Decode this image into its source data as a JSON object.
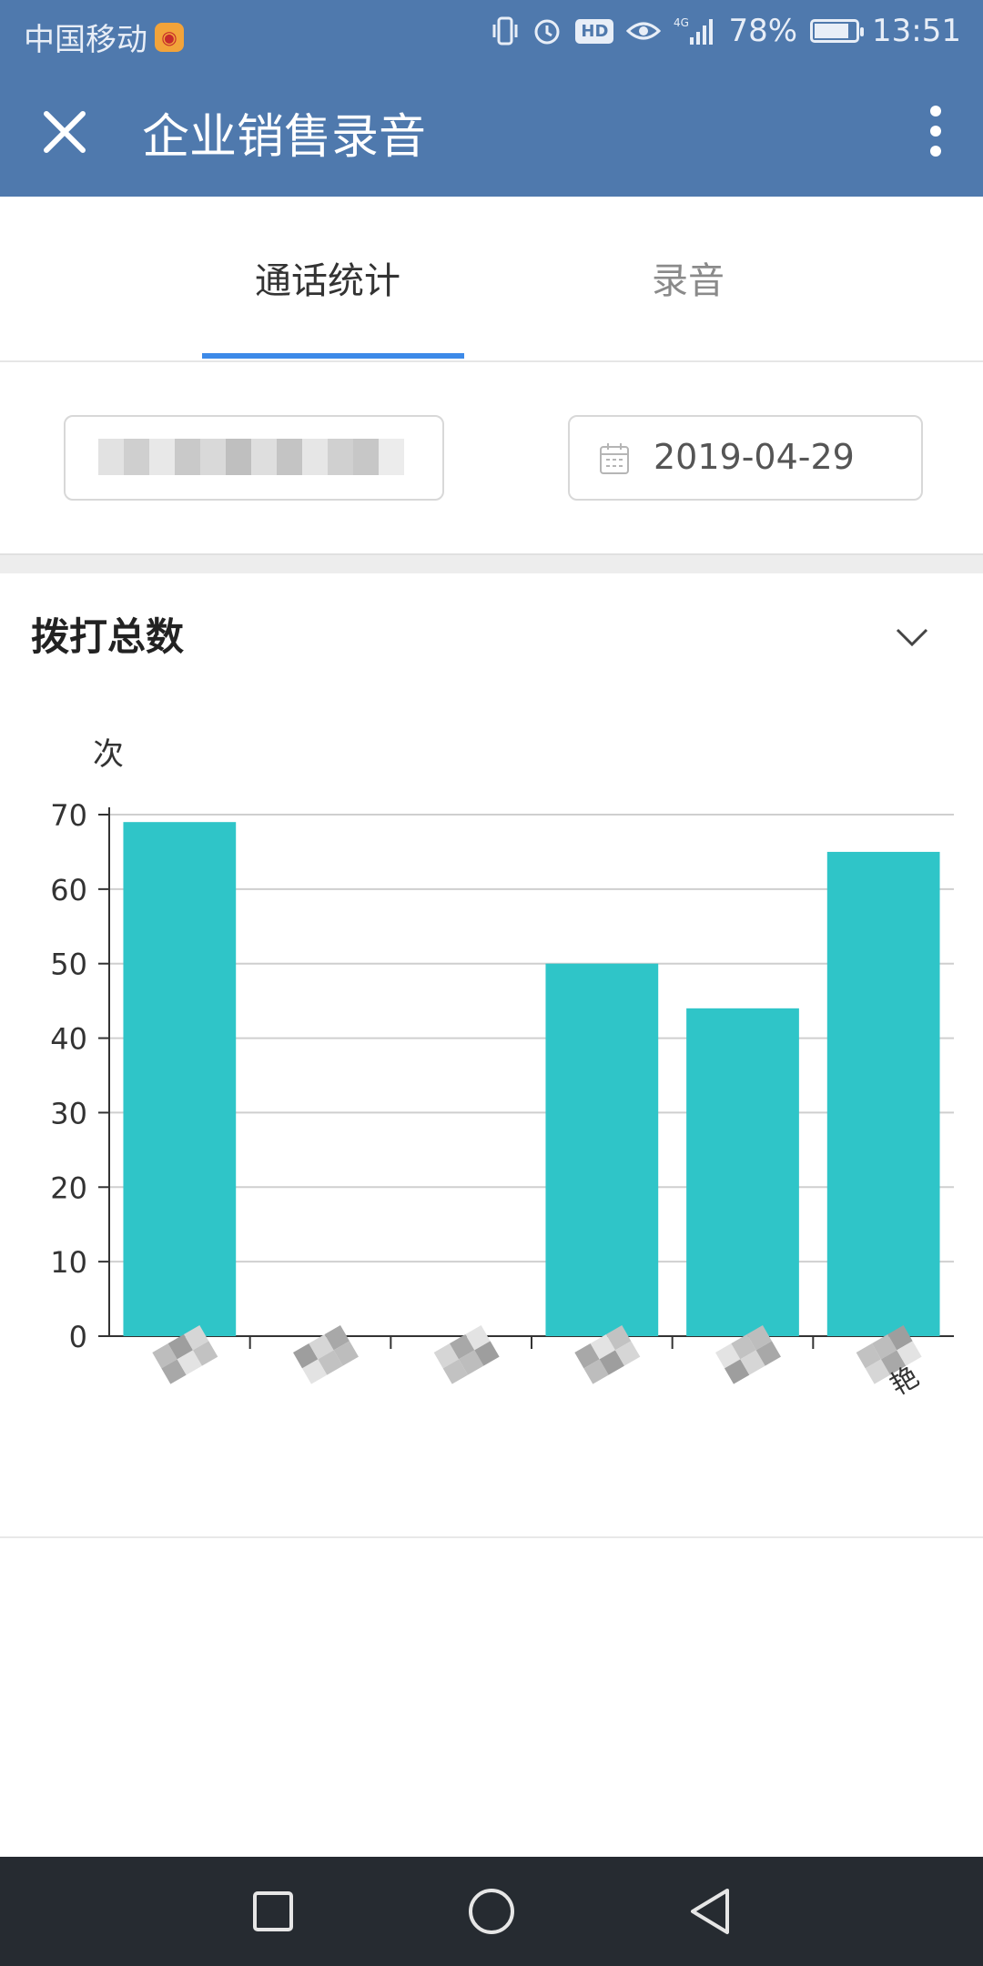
{
  "status_bar": {
    "carrier": "中国移动",
    "battery": "78%",
    "time": "13:51",
    "battery_level": 0.78,
    "icons": [
      "vibrate-icon",
      "alarm-icon",
      "hd-icon",
      "eye-icon",
      "signal-4g-icon",
      "battery-icon"
    ],
    "hd_label": "HD"
  },
  "header": {
    "title": "企业销售录音",
    "close_icon": "close-icon",
    "more_icon": "more-vertical-icon"
  },
  "tabs": [
    {
      "label": "通话统计",
      "active": true
    },
    {
      "label": "录音",
      "active": false
    }
  ],
  "filters": {
    "user_select_value": "",
    "date": "2019-04-29",
    "date_icon": "calendar-icon"
  },
  "card": {
    "title": "拨打总数",
    "toggle_icon": "chevron-down-icon"
  },
  "chart_data": {
    "type": "bar",
    "ylabel": "次",
    "ylim": [
      0,
      70
    ],
    "yticks": [
      0,
      10,
      20,
      30,
      40,
      50,
      60,
      70
    ],
    "grid": true,
    "color": "#2fc5c8",
    "categories": [
      "",
      "",
      "",
      "",
      "",
      "艳"
    ],
    "values": [
      69,
      0,
      0,
      50,
      44,
      65
    ]
  },
  "navbar": {
    "icons": [
      "recent-apps-icon",
      "home-icon",
      "back-icon"
    ]
  }
}
